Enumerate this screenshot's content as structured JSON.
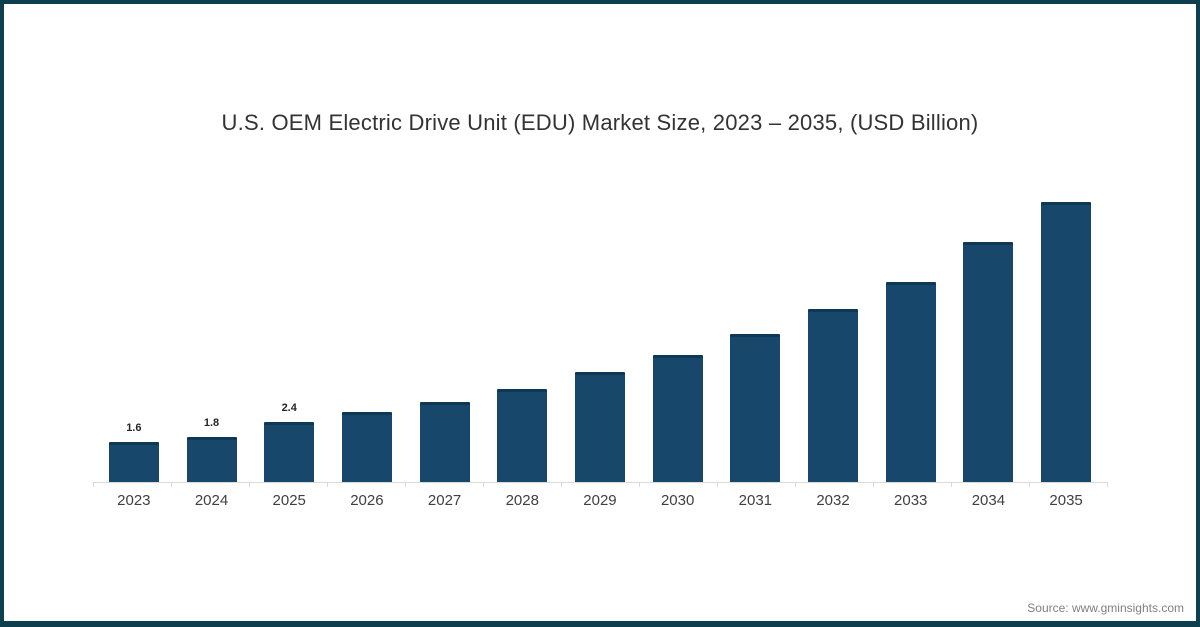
{
  "title": "U.S. OEM Electric Drive Unit (EDU) Market Size, 2023 – 2035, (USD Billion)",
  "source": {
    "text": "Source: www.gminsights.com"
  },
  "colors": {
    "bar": "#17486B",
    "frame_border": "#0e3f4e",
    "axis_line": "#d9d9d9",
    "title_text": "#333333",
    "source_text": "#808080"
  },
  "chart_data": {
    "type": "bar",
    "title": "U.S. OEM Electric Drive Unit (EDU) Market Size, 2023 – 2035, (USD Billion)",
    "categories": [
      "2023",
      "2024",
      "2025",
      "2026",
      "2027",
      "2028",
      "2029",
      "2030",
      "2031",
      "2032",
      "2033",
      "2034",
      "2035"
    ],
    "values": [
      1.6,
      1.8,
      2.4,
      2.8,
      3.2,
      3.7,
      4.4,
      5.1,
      5.9,
      6.9,
      8.0,
      9.6,
      11.2
    ],
    "data_labels": [
      "1.6",
      "1.8",
      "2.4",
      "",
      "",
      "",
      "",
      "",
      "",
      "",
      "",
      "",
      ""
    ],
    "xlabel": "",
    "ylabel": "",
    "ylim": [
      0,
      11.5
    ],
    "bar_color": "#17486B",
    "y_axis_visible": false,
    "gridlines": false,
    "legend_position": "none"
  }
}
